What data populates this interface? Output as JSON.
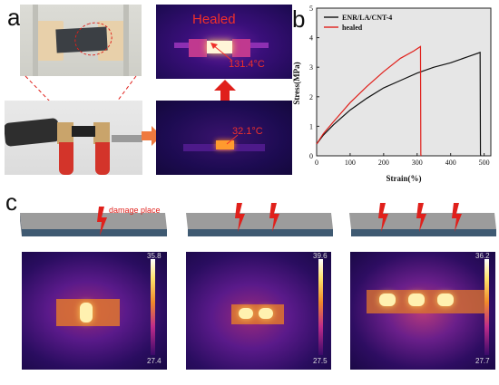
{
  "panels": {
    "a": {
      "letter": "a",
      "healed_label": "Healed",
      "temp_top": "131.4°C",
      "temp_bottom": "32.1°C"
    },
    "b": {
      "letter": "b"
    },
    "c": {
      "letter": "c",
      "damage_label": "damage place",
      "scales": [
        {
          "max": "35.8",
          "min": "27.4"
        },
        {
          "max": "39.6",
          "min": "27.5"
        },
        {
          "max": "36.2",
          "min": "27.7"
        }
      ]
    }
  },
  "colors": {
    "original_series": "#111111",
    "healed_series": "#e0201b",
    "arrow_red": "#e0201b",
    "arrow_orange": "#ef7a3f"
  },
  "chart_data": {
    "type": "line",
    "xlabel": "Strain(%)",
    "ylabel": "Stress(MPa)",
    "xlim": [
      0,
      520
    ],
    "ylim": [
      0,
      5
    ],
    "xticks": [
      0,
      100,
      200,
      300,
      400,
      500
    ],
    "yticks": [
      0,
      1,
      2,
      3,
      4,
      5
    ],
    "legend_position": "top-left",
    "series": [
      {
        "name": "ENR/LA/CNT-4",
        "color": "#111111",
        "x": [
          0,
          20,
          50,
          100,
          150,
          200,
          250,
          300,
          350,
          400,
          450,
          488,
          489,
          490
        ],
        "y": [
          0.4,
          0.7,
          1.05,
          1.55,
          1.95,
          2.3,
          2.55,
          2.8,
          3.0,
          3.15,
          3.35,
          3.5,
          0.05,
          0
        ]
      },
      {
        "name": "healed",
        "color": "#e0201b",
        "x": [
          0,
          20,
          50,
          100,
          150,
          200,
          250,
          290,
          310,
          311,
          312
        ],
        "y": [
          0.4,
          0.75,
          1.15,
          1.8,
          2.35,
          2.85,
          3.3,
          3.55,
          3.7,
          0.05,
          0
        ]
      }
    ]
  }
}
